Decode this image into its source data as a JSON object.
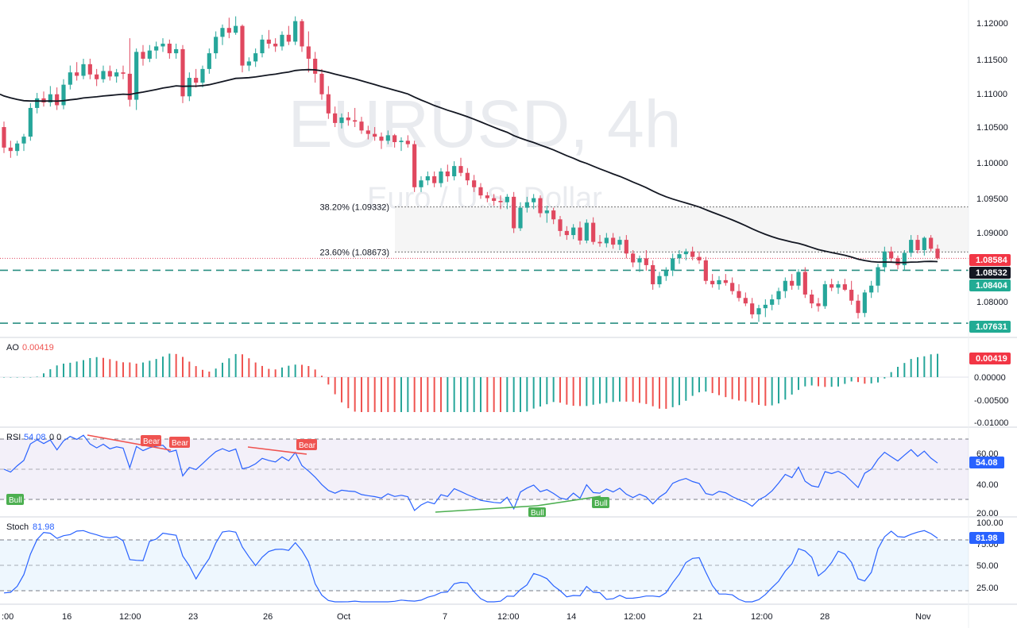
{
  "watermark": {
    "symbol": "EURUSD, 4h",
    "name": "Euro / U.S. Dollar"
  },
  "colors": {
    "bull": "#26a69a",
    "bear": "#ef5350",
    "candle_up": "#26a69a",
    "candle_down": "#e0485f",
    "ma": "#131722",
    "rsi_line": "#2962ff",
    "stoch_line": "#2962ff",
    "rsi_band": "#7e57c2",
    "stoch_band": "#2196f3",
    "level_line": "#2a8f82",
    "price_tag": "#f23645",
    "last_tag": "#131722",
    "level_tag": "#22ab94"
  },
  "price_axis": {
    "ticks": [
      "1.12000",
      "1.11500",
      "1.11000",
      "1.10500",
      "1.10000",
      "1.09500",
      "1.09000",
      "1.08000"
    ]
  },
  "price_tags": {
    "current": "1.08584",
    "ma": "1.08532",
    "level1": "1.08404",
    "level2": "1.07631"
  },
  "fib": [
    {
      "label": "38.20% (1.09332)",
      "value": 1.09332
    },
    {
      "label": "23.60% (1.08673)",
      "value": 1.08673
    }
  ],
  "levels": [
    1.08404,
    1.07631
  ],
  "time_axis": [
    ":00",
    "16",
    "12:00",
    "23",
    "26",
    "Oct",
    "7",
    "12:00",
    "14",
    "12:00",
    "21",
    "12:00",
    "28",
    "Nov"
  ],
  "ao": {
    "title": "AO",
    "value": "0.00419",
    "ticks": [
      "0.00000",
      "-0.00500",
      "-0.01000"
    ],
    "tag": "0.00419"
  },
  "rsi": {
    "title": "RSI",
    "value": "54.08",
    "extra": "0 0",
    "ticks": [
      "60.00",
      "40.00",
      "20.00"
    ],
    "tag": "54.08",
    "labels": {
      "bull": "Bull",
      "bear": "Bear"
    }
  },
  "stoch": {
    "title": "Stoch",
    "value": "81.98",
    "ticks": [
      "100.00",
      "75.00",
      "50.00",
      "25.00"
    ],
    "tag": "81.98"
  },
  "chart_data": {
    "type": "candlestick",
    "symbol": "EURUSD",
    "timeframe": "4h",
    "ylim": [
      1.0755,
      1.1215
    ],
    "candles_ohlc": [
      [
        1.105,
        1.1058,
        1.1012,
        1.102
      ],
      [
        1.102,
        1.103,
        1.1005,
        1.1015
      ],
      [
        1.1015,
        1.103,
        1.1008,
        1.1026
      ],
      [
        1.1026,
        1.104,
        1.1015,
        1.1036
      ],
      [
        1.1036,
        1.1085,
        1.103,
        1.1078
      ],
      [
        1.1078,
        1.11,
        1.107,
        1.1092
      ],
      [
        1.1092,
        1.1102,
        1.108,
        1.1086
      ],
      [
        1.1086,
        1.111,
        1.108,
        1.1098
      ],
      [
        1.1098,
        1.1108,
        1.1075,
        1.1082
      ],
      [
        1.1082,
        1.112,
        1.1076,
        1.1112
      ],
      [
        1.1112,
        1.114,
        1.1105,
        1.113
      ],
      [
        1.113,
        1.1145,
        1.1118,
        1.1125
      ],
      [
        1.1125,
        1.115,
        1.112,
        1.1142
      ],
      [
        1.1142,
        1.115,
        1.112,
        1.1127
      ],
      [
        1.1127,
        1.1135,
        1.111,
        1.112
      ],
      [
        1.112,
        1.114,
        1.1115,
        1.1132
      ],
      [
        1.1132,
        1.114,
        1.1118,
        1.1124
      ],
      [
        1.1124,
        1.1135,
        1.1115,
        1.113
      ],
      [
        1.113,
        1.114,
        1.112,
        1.1128
      ],
      [
        1.1128,
        1.118,
        1.108,
        1.109
      ],
      [
        1.109,
        1.1165,
        1.1075,
        1.116
      ],
      [
        1.116,
        1.117,
        1.114,
        1.115
      ],
      [
        1.115,
        1.117,
        1.1145,
        1.1162
      ],
      [
        1.1162,
        1.1175,
        1.115,
        1.1168
      ],
      [
        1.1168,
        1.118,
        1.116,
        1.1172
      ],
      [
        1.1172,
        1.1178,
        1.115,
        1.1158
      ],
      [
        1.1158,
        1.1172,
        1.115,
        1.1164
      ],
      [
        1.1164,
        1.117,
        1.1085,
        1.1095
      ],
      [
        1.1095,
        1.113,
        1.1088,
        1.1122
      ],
      [
        1.1122,
        1.1135,
        1.1108,
        1.1115
      ],
      [
        1.1115,
        1.114,
        1.1108,
        1.1135
      ],
      [
        1.1135,
        1.1165,
        1.1128,
        1.1158
      ],
      [
        1.1158,
        1.119,
        1.115,
        1.1182
      ],
      [
        1.1182,
        1.12,
        1.117,
        1.1195
      ],
      [
        1.1195,
        1.121,
        1.118,
        1.1188
      ],
      [
        1.1188,
        1.1212,
        1.1185,
        1.1198
      ],
      [
        1.1198,
        1.12,
        1.113,
        1.114
      ],
      [
        1.114,
        1.1152,
        1.1132,
        1.1146
      ],
      [
        1.1146,
        1.1165,
        1.1138,
        1.1158
      ],
      [
        1.1158,
        1.1185,
        1.1152,
        1.1178
      ],
      [
        1.1178,
        1.1192,
        1.1165,
        1.1172
      ],
      [
        1.1172,
        1.118,
        1.116,
        1.1168
      ],
      [
        1.1168,
        1.119,
        1.1162,
        1.1185
      ],
      [
        1.1185,
        1.1198,
        1.117,
        1.1175
      ],
      [
        1.1175,
        1.1212,
        1.117,
        1.1205
      ],
      [
        1.1205,
        1.1208,
        1.116,
        1.1168
      ],
      [
        1.1168,
        1.119,
        1.113,
        1.115
      ],
      [
        1.115,
        1.116,
        1.1115,
        1.1128
      ],
      [
        1.1128,
        1.1135,
        1.109,
        1.1098
      ],
      [
        1.1098,
        1.111,
        1.1062,
        1.107
      ],
      [
        1.107,
        1.108,
        1.105,
        1.1056
      ],
      [
        1.1056,
        1.107,
        1.1048,
        1.1064
      ],
      [
        1.1064,
        1.1072,
        1.1052,
        1.106
      ],
      [
        1.106,
        1.1078,
        1.105,
        1.1058
      ],
      [
        1.1058,
        1.1065,
        1.104,
        1.1045
      ],
      [
        1.1045,
        1.1052,
        1.1032,
        1.104
      ],
      [
        1.104,
        1.105,
        1.103,
        1.1036
      ],
      [
        1.1036,
        1.1042,
        1.1018,
        1.103
      ],
      [
        1.103,
        1.1045,
        1.1025,
        1.1038
      ],
      [
        1.1038,
        1.104,
        1.102,
        1.1028
      ],
      [
        1.1028,
        1.1035,
        1.1015,
        1.103
      ],
      [
        1.103,
        1.1038,
        1.102,
        1.1025
      ],
      [
        1.1025,
        1.103,
        1.0955,
        1.0962
      ],
      [
        1.0962,
        1.0978,
        1.0955,
        1.0972
      ],
      [
        1.0972,
        1.0985,
        1.0965,
        1.0978
      ],
      [
        1.0978,
        1.0985,
        1.0962,
        1.0968
      ],
      [
        1.0968,
        1.099,
        1.0962,
        1.0985
      ],
      [
        1.0985,
        1.0995,
        1.097,
        1.0978
      ],
      [
        1.0978,
        1.1,
        1.0972,
        1.0993
      ],
      [
        1.0993,
        1.1005,
        1.0978,
        1.0983
      ],
      [
        1.0983,
        1.099,
        1.0965,
        1.0972
      ],
      [
        1.0972,
        1.098,
        1.0955,
        1.0962
      ],
      [
        1.0962,
        1.0968,
        1.0945,
        1.095
      ],
      [
        1.095,
        1.0955,
        1.094,
        1.0946
      ],
      [
        1.0946,
        1.0952,
        1.0935,
        1.0942
      ],
      [
        1.0942,
        1.095,
        1.093,
        1.094
      ],
      [
        1.094,
        1.0952,
        1.093,
        1.0948
      ],
      [
        1.0948,
        1.0955,
        1.0895,
        1.0902
      ],
      [
        1.0902,
        1.094,
        1.0898,
        1.0932
      ],
      [
        1.0932,
        1.0948,
        1.0925,
        1.094
      ],
      [
        1.094,
        1.0952,
        1.093,
        1.0946
      ],
      [
        1.0946,
        1.095,
        1.0918,
        1.0924
      ],
      [
        1.0924,
        1.0935,
        1.091,
        1.0928
      ],
      [
        1.0928,
        1.0932,
        1.0908,
        1.0915
      ],
      [
        1.0915,
        1.092,
        1.089,
        1.0898
      ],
      [
        1.0898,
        1.0905,
        1.0885,
        1.0892
      ],
      [
        1.0892,
        1.0908,
        1.0886,
        1.0903
      ],
      [
        1.0903,
        1.0912,
        1.0878,
        1.0884
      ],
      [
        1.0884,
        1.0915,
        1.088,
        1.091
      ],
      [
        1.091,
        1.0918,
        1.0878,
        1.0882
      ],
      [
        1.0882,
        1.0892,
        1.0875,
        1.088
      ],
      [
        1.088,
        1.0895,
        1.0874,
        1.0888
      ],
      [
        1.0888,
        1.0895,
        1.0872,
        1.0878
      ],
      [
        1.0878,
        1.089,
        1.087,
        1.0885
      ],
      [
        1.0885,
        1.0892,
        1.0858,
        1.0865
      ],
      [
        1.0865,
        1.087,
        1.0845,
        1.0852
      ],
      [
        1.0852,
        1.0862,
        1.0838,
        1.0858
      ],
      [
        1.0858,
        1.087,
        1.084,
        1.0848
      ],
      [
        1.0848,
        1.0855,
        1.0812,
        1.082
      ],
      [
        1.082,
        1.0838,
        1.0815,
        1.0832
      ],
      [
        1.0832,
        1.0845,
        1.0825,
        1.084
      ],
      [
        1.084,
        1.0865,
        1.0832,
        1.0858
      ],
      [
        1.0858,
        1.087,
        1.085,
        1.0864
      ],
      [
        1.0864,
        1.0872,
        1.0855,
        1.0868
      ],
      [
        1.0868,
        1.0875,
        1.0855,
        1.086
      ],
      [
        1.086,
        1.0868,
        1.085,
        1.0855
      ],
      [
        1.0855,
        1.086,
        1.082,
        1.0825
      ],
      [
        1.0825,
        1.0835,
        1.0815,
        1.082
      ],
      [
        1.082,
        1.0832,
        1.0812,
        1.0826
      ],
      [
        1.0826,
        1.0835,
        1.0818,
        1.0822
      ],
      [
        1.0822,
        1.083,
        1.0805,
        1.081
      ],
      [
        1.081,
        1.082,
        1.0795,
        1.08
      ],
      [
        1.08,
        1.0808,
        1.0788,
        1.0792
      ],
      [
        1.0792,
        1.08,
        1.077,
        1.0776
      ],
      [
        1.0776,
        1.079,
        1.0765,
        1.0785
      ],
      [
        1.0785,
        1.0798,
        1.0772,
        1.079
      ],
      [
        1.079,
        1.0805,
        1.0782,
        1.0798
      ],
      [
        1.0798,
        1.0815,
        1.079,
        1.081
      ],
      [
        1.081,
        1.083,
        1.08,
        1.0825
      ],
      [
        1.0825,
        1.0835,
        1.0812,
        1.0818
      ],
      [
        1.0818,
        1.0842,
        1.0812,
        1.0838
      ],
      [
        1.0838,
        1.0845,
        1.08,
        1.0805
      ],
      [
        1.0805,
        1.0812,
        1.0785,
        1.0792
      ],
      [
        1.0792,
        1.08,
        1.078,
        1.0788
      ],
      [
        1.0788,
        1.0825,
        1.0784,
        1.082
      ],
      [
        1.082,
        1.0828,
        1.081,
        1.0815
      ],
      [
        1.0815,
        1.0825,
        1.0806,
        1.082
      ],
      [
        1.082,
        1.0828,
        1.081,
        1.0812
      ],
      [
        1.0812,
        1.0825,
        1.079,
        1.0796
      ],
      [
        1.0796,
        1.0805,
        1.077,
        1.0778
      ],
      [
        1.0778,
        1.0812,
        1.0772,
        1.0808
      ],
      [
        1.0808,
        1.0825,
        1.08,
        1.0818
      ],
      [
        1.0818,
        1.085,
        1.0808,
        1.0845
      ],
      [
        1.0845,
        1.0875,
        1.0838,
        1.0868
      ],
      [
        1.0868,
        1.0875,
        1.0852,
        1.0858
      ],
      [
        1.0858,
        1.0862,
        1.0842,
        1.0848
      ],
      [
        1.0848,
        1.087,
        1.084,
        1.0866
      ],
      [
        1.0866,
        1.0892,
        1.086,
        1.0885
      ],
      [
        1.0885,
        1.0892,
        1.0865,
        1.087
      ],
      [
        1.087,
        1.089,
        1.0862,
        1.0888
      ],
      [
        1.0888,
        1.0892,
        1.0868,
        1.0872
      ],
      [
        1.0872,
        1.0878,
        1.0856,
        1.0858
      ]
    ],
    "ma_value_last": 1.08532,
    "fib_levels": [
      {
        "ratio": "38.20%",
        "value": 1.09332
      },
      {
        "ratio": "23.60%",
        "value": 1.08673
      }
    ],
    "support_levels": [
      1.08404,
      1.07631
    ],
    "indicators": {
      "ao_last": 0.00419,
      "rsi_last": 54.08,
      "stoch_last": 81.98
    }
  }
}
